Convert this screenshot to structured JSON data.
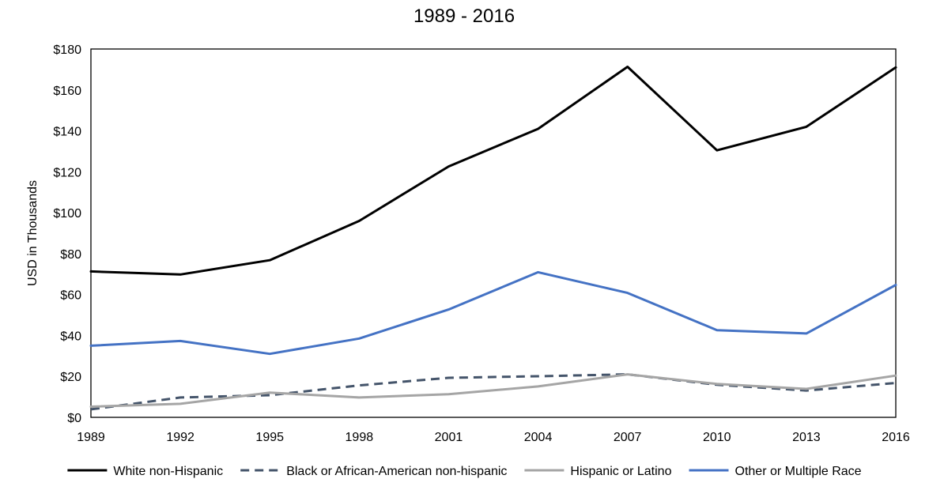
{
  "chart_data": {
    "type": "line",
    "title": "1989 - 2016",
    "ylabel": "USD in Thousands",
    "xlabel": "",
    "x": [
      1989,
      1992,
      1995,
      1998,
      2001,
      2004,
      2007,
      2010,
      2013,
      2016
    ],
    "ylim": [
      0,
      180
    ],
    "yticks": [
      0,
      20,
      40,
      60,
      80,
      100,
      120,
      140,
      160,
      180
    ],
    "ytick_labels": [
      "$0",
      "$20",
      "$40",
      "$60",
      "$80",
      "$100",
      "$120",
      "$140",
      "$160",
      "$180"
    ],
    "grid": false,
    "legend_position": "bottom",
    "series": [
      {
        "name": "White non-Hispanic",
        "color": "#000000",
        "style": "solid",
        "values": [
          71.3,
          69.8,
          76.8,
          96.0,
          122.6,
          141.0,
          171.3,
          130.5,
          142.0,
          171.0
        ]
      },
      {
        "name": "Black or African-American non-hispanic",
        "color": "#44546A",
        "style": "dashed",
        "values": [
          3.9,
          9.7,
          10.8,
          15.6,
          19.3,
          20.1,
          21.0,
          15.9,
          13.1,
          16.8
        ]
      },
      {
        "name": "Hispanic or Latino",
        "color": "#A5A5A5",
        "style": "solid",
        "values": [
          5.2,
          6.6,
          12.1,
          9.7,
          11.3,
          15.1,
          21.0,
          16.3,
          13.9,
          20.4
        ]
      },
      {
        "name": "Other or Multiple Race",
        "color": "#4472C4",
        "style": "solid",
        "values": [
          35.0,
          37.3,
          31.0,
          38.5,
          52.7,
          70.9,
          60.8,
          42.6,
          41.0,
          64.7
        ]
      }
    ]
  }
}
